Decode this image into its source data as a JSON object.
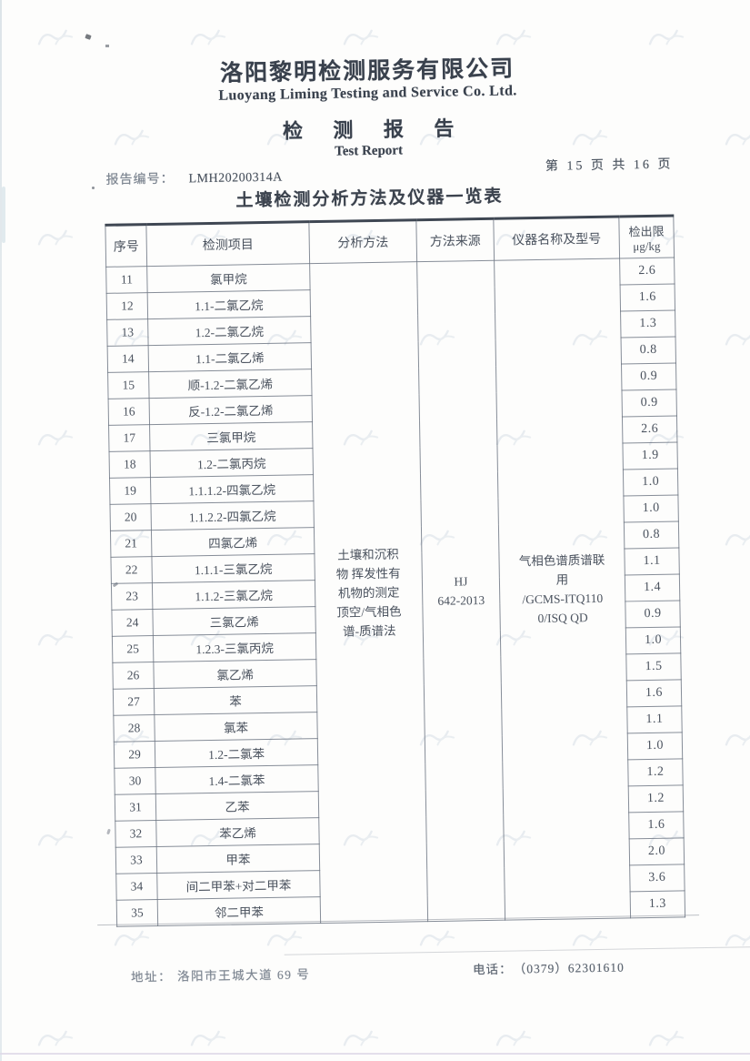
{
  "header": {
    "company_cn": "洛阳黎明检测服务有限公司",
    "company_en": "Luoyang Liming Testing and Service Co. Ltd.",
    "report_title_cn": "检 测 报 告",
    "report_title_en": "Test Report",
    "report_no_label": "报告编号：",
    "report_no": "LMH20200314A",
    "page_info": "第 15 页 共 16 页"
  },
  "table": {
    "title": "土壤检测分析方法及仪器一览表",
    "columns": {
      "no": "序号",
      "item": "检测项目",
      "method": "分析方法",
      "source": "方法来源",
      "instrument": "仪器名称及型号",
      "limit": "检出限",
      "limit_unit": "μg/kg"
    },
    "merged": {
      "analysis_method": "土壤和沉积物 挥发性有机物的测定 顶空/气相色谱-质谱法",
      "analysis_method_lines": [
        "土壤和沉积",
        "物 挥发性有",
        "机物的测定",
        "顶空/气相色",
        "谱-质谱法"
      ],
      "method_source": "HJ 642-2013",
      "method_source_lines": [
        "HJ",
        "642-2013"
      ],
      "instrument": "气相色谱质谱联用/GCMS-ITQ1100/ISQ QD",
      "instrument_lines": [
        "气相色谱质谱联",
        "用",
        "/GCMS-ITQ110",
        "0/ISQ QD"
      ]
    },
    "rows": [
      {
        "no": "11",
        "item": "氯甲烷",
        "limit": "2.6"
      },
      {
        "no": "12",
        "item": "1.1-二氯乙烷",
        "limit": "1.6"
      },
      {
        "no": "13",
        "item": "1.2-二氯乙烷",
        "limit": "1.3"
      },
      {
        "no": "14",
        "item": "1.1-二氯乙烯",
        "limit": "0.8"
      },
      {
        "no": "15",
        "item": "顺-1.2-二氯乙烯",
        "limit": "0.9"
      },
      {
        "no": "16",
        "item": "反-1.2-二氯乙烯",
        "limit": "0.9"
      },
      {
        "no": "17",
        "item": "三氯甲烷",
        "limit": "2.6"
      },
      {
        "no": "18",
        "item": "1.2-二氯丙烷",
        "limit": "1.9"
      },
      {
        "no": "19",
        "item": "1.1.1.2-四氯乙烷",
        "limit": "1.0"
      },
      {
        "no": "20",
        "item": "1.1.2.2-四氯乙烷",
        "limit": "1.0"
      },
      {
        "no": "21",
        "item": "四氯乙烯",
        "limit": "0.8"
      },
      {
        "no": "22",
        "item": "1.1.1-三氯乙烷",
        "limit": "1.1"
      },
      {
        "no": "23",
        "item": "1.1.2-三氯乙烷",
        "limit": "1.4"
      },
      {
        "no": "24",
        "item": "三氯乙烯",
        "limit": "0.9"
      },
      {
        "no": "25",
        "item": "1.2.3-三氯丙烷",
        "limit": "1.0"
      },
      {
        "no": "26",
        "item": "氯乙烯",
        "limit": "1.5"
      },
      {
        "no": "27",
        "item": "苯",
        "limit": "1.6"
      },
      {
        "no": "28",
        "item": "氯苯",
        "limit": "1.1"
      },
      {
        "no": "29",
        "item": "1.2-二氯苯",
        "limit": "1.0"
      },
      {
        "no": "30",
        "item": "1.4-二氯苯",
        "limit": "1.2"
      },
      {
        "no": "31",
        "item": "乙苯",
        "limit": "1.2"
      },
      {
        "no": "32",
        "item": "苯乙烯",
        "limit": "1.6"
      },
      {
        "no": "33",
        "item": "甲苯",
        "limit": "2.0"
      },
      {
        "no": "34",
        "item": "间二甲苯+对二甲苯",
        "limit": "3.6"
      },
      {
        "no": "35",
        "item": "邻二甲苯",
        "limit": "1.3"
      }
    ]
  },
  "footer": {
    "address_label": "地址：",
    "address": "洛阳市王城大道 69 号",
    "phone_label": "电话：",
    "phone": "（0379）62301610"
  }
}
